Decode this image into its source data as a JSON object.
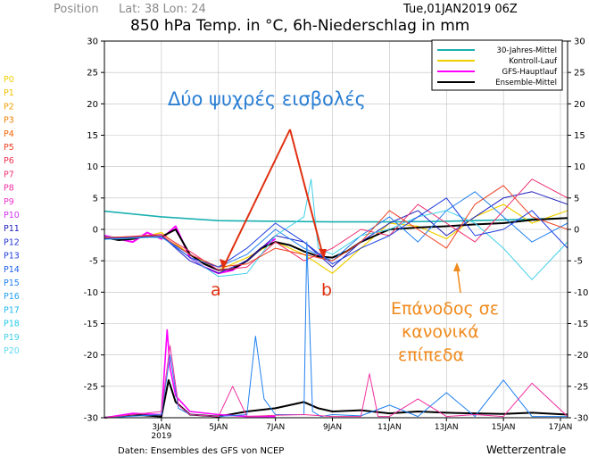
{
  "header": {
    "position_label": "Position",
    "lat_lon": "Lat: 38 Lon: 24",
    "datetime": "Tue,01JAN2019 06Z",
    "title": "850 hPa Temp. in °C, 6h-Niederschlag in mm"
  },
  "footer": {
    "source": "Daten: Ensembles des GFS von NCEP",
    "brand": "Wetterzentrale"
  },
  "annotations": {
    "cold_title": "Δύο ψυχρές εισβολές",
    "label_a": "a",
    "label_b": "b",
    "return_line1": "Επάνοδος σε",
    "return_line2": "κανονικά",
    "return_line3": "επίπεδα"
  },
  "colors": {
    "frame": "#000000",
    "grid": "#c0c0c0",
    "annotation_blue": "#2a7fd4",
    "annotation_orange": "#f08a1c",
    "arrow_red": "#e03010",
    "clim": "#1ab0b0",
    "control": "#f0d000",
    "gfs": "#ff00ff",
    "ensemble": "#000000"
  },
  "chart_data": {
    "type": "line",
    "title": "850 hPa Temp. in °C, 6h-Niederschlag in mm",
    "xlabel": "",
    "ylabel": "",
    "x_unit": "day (Jan 2019)",
    "xlim": [
      1.0,
      17.25
    ],
    "ylim": [
      -30,
      30
    ],
    "y_ticks": [
      -30,
      -25,
      -20,
      -15,
      -10,
      -5,
      0,
      5,
      10,
      15,
      20,
      25,
      30
    ],
    "x_ticks": [
      {
        "x": 3,
        "label": "3JAN",
        "sub": "2019"
      },
      {
        "x": 5,
        "label": "5JAN",
        "sub": ""
      },
      {
        "x": 7,
        "label": "7JAN",
        "sub": ""
      },
      {
        "x": 9,
        "label": "9JAN",
        "sub": ""
      },
      {
        "x": 11,
        "label": "11JAN",
        "sub": ""
      },
      {
        "x": 13,
        "label": "13JAN",
        "sub": ""
      },
      {
        "x": 15,
        "label": "15JAN",
        "sub": ""
      },
      {
        "x": 17,
        "label": "17JAN",
        "sub": ""
      }
    ],
    "legend": {
      "position": "top-right",
      "entries": [
        {
          "name": "30-Jahres-Mittel",
          "color": "#1ab0b0"
        },
        {
          "name": "Kontroll-Lauf",
          "color": "#f0d000"
        },
        {
          "name": "GFS-Hauptlauf",
          "color": "#ff00ff"
        },
        {
          "name": "Ensemble-Mittel",
          "color": "#000000"
        }
      ]
    },
    "member_labels": [
      {
        "name": "P0",
        "color": "#f0d000"
      },
      {
        "name": "P1",
        "color": "#f0c000"
      },
      {
        "name": "P2",
        "color": "#f0a000"
      },
      {
        "name": "P3",
        "color": "#f08000"
      },
      {
        "name": "P4",
        "color": "#f06000"
      },
      {
        "name": "P5",
        "color": "#f04020"
      },
      {
        "name": "P6",
        "color": "#f03050"
      },
      {
        "name": "P7",
        "color": "#f03070"
      },
      {
        "name": "P8",
        "color": "#f030a0"
      },
      {
        "name": "P9",
        "color": "#f030d0"
      },
      {
        "name": "P10",
        "color": "#d030f0"
      },
      {
        "name": "P11",
        "color": "#2020c0"
      },
      {
        "name": "P12",
        "color": "#2030d0"
      },
      {
        "name": "P13",
        "color": "#2040e0"
      },
      {
        "name": "P14",
        "color": "#2060e8"
      },
      {
        "name": "P15",
        "color": "#2080f0"
      },
      {
        "name": "P16",
        "color": "#20a0f0"
      },
      {
        "name": "P17",
        "color": "#20b8f0"
      },
      {
        "name": "P18",
        "color": "#20c8e8"
      },
      {
        "name": "P19",
        "color": "#40d0e8"
      },
      {
        "name": "P20",
        "color": "#60d8f0"
      }
    ],
    "series": [
      {
        "name": "30-Jahres-Mittel",
        "color": "#1ab0b0",
        "width": 1.6,
        "x": [
          1,
          3,
          5,
          7,
          9,
          11,
          13,
          15,
          17.25
        ],
        "y": [
          2.9,
          2.0,
          1.4,
          1.3,
          1.2,
          1.2,
          1.3,
          1.5,
          1.8
        ]
      },
      {
        "name": "Kontroll-Lauf",
        "color": "#f0d000",
        "width": 1.2,
        "x": [
          1,
          2,
          3,
          4,
          5,
          6,
          7,
          8,
          9,
          10,
          11,
          12,
          13,
          14,
          15,
          16,
          17.25
        ],
        "y": [
          -1.5,
          -1.6,
          -0.5,
          -4.0,
          -6.5,
          -4.5,
          -2.0,
          -4.0,
          -7.0,
          -3.0,
          1.0,
          0.5,
          -1.5,
          2.0,
          4.0,
          1.0,
          3.0
        ]
      },
      {
        "name": "GFS-Hauptlauf",
        "color": "#ff00ff",
        "width": 2.0,
        "x": [
          1,
          1.5,
          2,
          2.5,
          3,
          3.25,
          3.5,
          4,
          4.5,
          5,
          5.5,
          6,
          6.5,
          7
        ],
        "y": [
          -1.0,
          -1.5,
          -2.0,
          -0.5,
          -1.5,
          -0.5,
          0.5,
          -4.5,
          -6.0,
          -7.0,
          -6.5,
          -5.0,
          -3.0,
          -1.5
        ]
      },
      {
        "name": "Ensemble-Mittel",
        "color": "#000000",
        "width": 2.0,
        "x": [
          1,
          1.5,
          2,
          2.5,
          3,
          3.5,
          4,
          4.5,
          5,
          5.5,
          6,
          6.5,
          7,
          7.5,
          8,
          8.5,
          9,
          9.5,
          10,
          10.5,
          11,
          12,
          13,
          14,
          15,
          16,
          17.25
        ],
        "y": [
          -1.3,
          -1.7,
          -1.5,
          -1.0,
          -1.2,
          0.0,
          -4.0,
          -5.5,
          -6.5,
          -6.3,
          -5.0,
          -3.0,
          -2.0,
          -2.5,
          -3.5,
          -4.3,
          -4.5,
          -3.5,
          -2.0,
          -1.0,
          0.0,
          0.3,
          0.5,
          0.8,
          1.0,
          1.5,
          1.8
        ]
      },
      {
        "name": "P11",
        "color": "#2020c0",
        "width": 1.0,
        "x": [
          1,
          3,
          4,
          5,
          6,
          7,
          8,
          9,
          10,
          11,
          12,
          13,
          14,
          15,
          16,
          17.25
        ],
        "y": [
          -1.5,
          -1.0,
          -5.0,
          -7.0,
          -5.0,
          -1.0,
          -2.0,
          -6.0,
          -2.0,
          1.0,
          3.0,
          -1.0,
          2.0,
          5.0,
          6.0,
          4.0
        ]
      },
      {
        "name": "P15",
        "color": "#2080f0",
        "width": 1.0,
        "x": [
          1,
          3,
          4,
          5,
          6,
          7,
          8,
          9,
          10,
          11,
          12,
          13,
          14,
          15,
          16,
          17.25
        ],
        "y": [
          -1.2,
          -1.3,
          -4.0,
          -6.0,
          -4.0,
          0.0,
          -3.0,
          -5.0,
          -1.0,
          2.0,
          -2.0,
          3.0,
          6.0,
          2.0,
          -2.0,
          1.0
        ]
      },
      {
        "name": "P7",
        "color": "#f03070",
        "width": 1.0,
        "x": [
          1,
          3,
          4,
          5,
          6,
          7,
          8,
          9,
          10,
          11,
          12,
          13,
          14,
          15,
          16,
          17.25
        ],
        "y": [
          -1.4,
          -0.8,
          -3.5,
          -6.5,
          -6.0,
          -2.0,
          -5.0,
          -3.0,
          0.0,
          -1.0,
          4.0,
          1.0,
          -2.0,
          3.0,
          8.0,
          5.0
        ]
      },
      {
        "name": "P19",
        "color": "#40d0e8",
        "width": 1.0,
        "x": [
          1,
          3,
          4,
          5,
          6,
          7,
          8,
          8.25,
          8.5,
          9,
          10,
          11,
          12,
          13,
          14,
          15,
          16,
          17.25
        ],
        "y": [
          -1.6,
          -1.2,
          -4.5,
          -7.5,
          -7.0,
          -1.0,
          2.0,
          8.0,
          -3.0,
          -4.0,
          -1.0,
          0.0,
          2.0,
          3.0,
          1.0,
          -3.0,
          -8.0,
          -2.0
        ]
      },
      {
        "name": "P5",
        "color": "#f04020",
        "width": 1.0,
        "x": [
          1,
          3,
          4,
          5,
          6,
          7,
          8,
          9,
          10,
          11,
          12,
          13,
          14,
          15,
          16,
          17.25
        ],
        "y": [
          -1.3,
          -1.0,
          -4.0,
          -6.0,
          -5.5,
          -3.0,
          -4.0,
          -5.0,
          -2.0,
          3.0,
          0.0,
          -3.0,
          4.0,
          7.0,
          2.0,
          0.0
        ]
      },
      {
        "name": "P13",
        "color": "#2040e0",
        "width": 1.0,
        "x": [
          1,
          3,
          4,
          5,
          6,
          7,
          8,
          9,
          10,
          11,
          12,
          13,
          14,
          15,
          16,
          17.25
        ],
        "y": [
          -1.5,
          -1.1,
          -4.5,
          -6.0,
          -3.0,
          1.0,
          -2.0,
          -5.5,
          -3.0,
          -1.0,
          2.0,
          5.0,
          -1.0,
          0.0,
          3.0,
          -3.0
        ]
      },
      {
        "name": "Niederschlag-Mittel",
        "color": "#000000",
        "width": 2.0,
        "x": [
          1,
          2,
          3,
          3.25,
          3.5,
          4,
          5,
          6,
          7,
          8,
          8.5,
          9,
          10,
          11,
          12,
          13,
          14,
          15,
          16,
          17.25
        ],
        "y": [
          -30,
          -29.5,
          -29.8,
          -24.0,
          -27.5,
          -29.5,
          -29.8,
          -29.0,
          -28.5,
          -27.5,
          -28.5,
          -29.0,
          -28.8,
          -29.3,
          -29.0,
          -29.2,
          -29.3,
          -29.4,
          -29.2,
          -29.5
        ]
      },
      {
        "name": "Niederschlag-GFS",
        "color": "#ff00ff",
        "width": 1.6,
        "x": [
          1,
          2,
          3,
          3.2,
          3.3,
          3.5,
          4,
          5,
          6,
          7
        ],
        "y": [
          -30,
          -29.3,
          -29.5,
          -16.0,
          -22.0,
          -26.5,
          -29.0,
          -29.5,
          -29.8,
          -29.8
        ]
      },
      {
        "name": "Niederschlag-P15",
        "color": "#2080f0",
        "width": 1.0,
        "x": [
          1,
          3,
          3.3,
          3.6,
          4,
          5,
          6,
          6.3,
          6.6,
          7,
          8,
          8.1,
          8.3,
          8.6,
          9,
          10,
          11,
          12,
          13,
          14,
          15,
          16,
          17.25
        ],
        "y": [
          -30,
          -29.5,
          -20.0,
          -28.5,
          -29.5,
          -29.8,
          -29.5,
          -17.0,
          -27.0,
          -29.5,
          -29.5,
          -2.0,
          -29.0,
          -29.8,
          -29.5,
          -29.7,
          -28.0,
          -29.8,
          -26.0,
          -29.8,
          -24.0,
          -29.8,
          -29.8
        ]
      },
      {
        "name": "Niederschlag-P8",
        "color": "#f030a0",
        "width": 1.0,
        "x": [
          1,
          3,
          3.3,
          3.6,
          4,
          5,
          5.5,
          6,
          7,
          8,
          9,
          10,
          10.3,
          10.6,
          11,
          12,
          13,
          14,
          15,
          16,
          17.25
        ],
        "y": [
          -30,
          -29.0,
          -18.5,
          -28.0,
          -29.5,
          -29.8,
          -25.0,
          -29.8,
          -29.6,
          -29.5,
          -29.8,
          -29.8,
          -23.0,
          -29.8,
          -29.8,
          -27.0,
          -29.8,
          -29.5,
          -29.8,
          -24.5,
          -29.8
        ]
      }
    ]
  }
}
